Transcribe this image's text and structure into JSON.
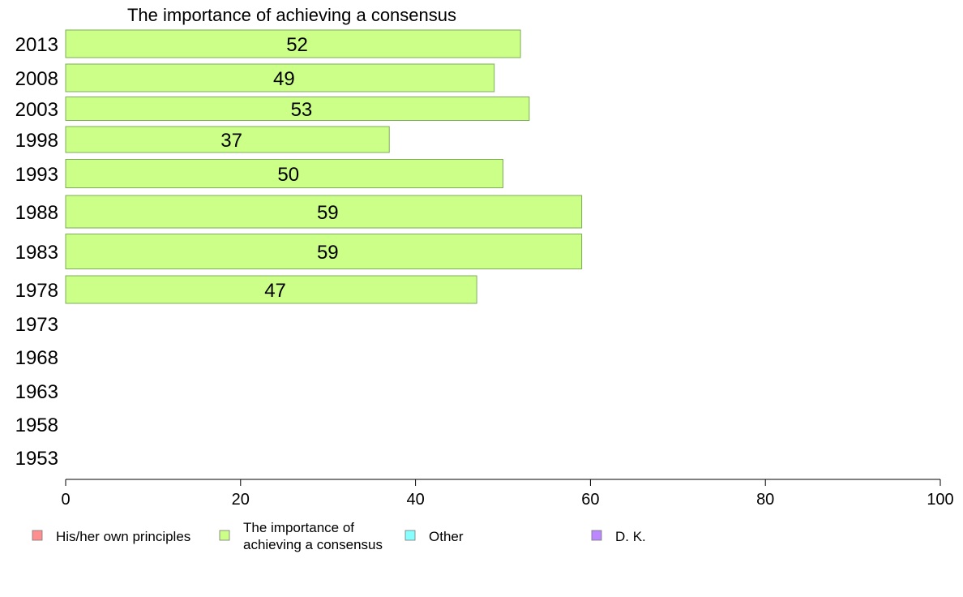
{
  "chart_data": {
    "type": "bar",
    "orientation": "horizontal",
    "title": "The importance of achieving a consensus",
    "categories": [
      "2013",
      "2008",
      "2003",
      "1998",
      "1993",
      "1988",
      "1983",
      "1978",
      "1973",
      "1968",
      "1963",
      "1958",
      "1953"
    ],
    "series": [
      {
        "name": "The importance of achieving a consensus",
        "color": "#ccff88",
        "values": [
          52,
          49,
          53,
          37,
          50,
          59,
          59,
          47,
          null,
          null,
          null,
          null,
          null
        ]
      }
    ],
    "xlim": [
      0,
      100
    ],
    "xticks": [
      0,
      20,
      40,
      60,
      80,
      100
    ],
    "grid": false,
    "legend": {
      "placement": "bottom-left",
      "items": [
        {
          "lines": [
            "His/her own principles"
          ],
          "color": "#ff8f8f"
        },
        {
          "lines": [
            "The importance of",
            "achieving a consensus"
          ],
          "color": "#ccff88"
        },
        {
          "lines": [
            "Other"
          ],
          "color": "#88ffff"
        },
        {
          "lines": [
            "D. K."
          ],
          "color": "#bb88ff"
        }
      ]
    }
  }
}
